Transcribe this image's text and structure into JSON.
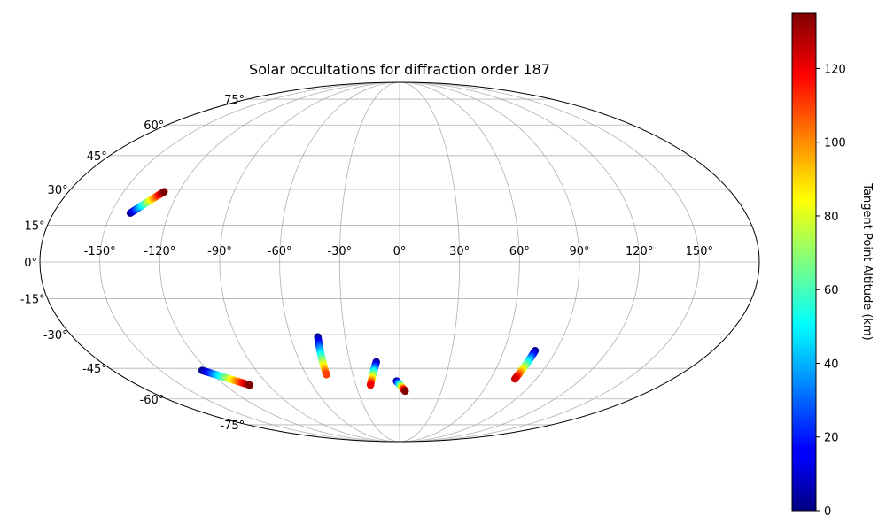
{
  "chart_data": {
    "type": "scatter",
    "projection": "mollweide",
    "title": "Solar occultations for diffraction order 187",
    "grid": true,
    "lon_tick_labels": [
      "-150°",
      "-120°",
      "-90°",
      "-60°",
      "-30°",
      "0°",
      "30°",
      "60°",
      "90°",
      "120°",
      "150°"
    ],
    "lon_ticks": [
      -150,
      -120,
      -90,
      -60,
      -30,
      0,
      30,
      60,
      90,
      120,
      150
    ],
    "lat_tick_labels": [
      "75°",
      "60°",
      "45°",
      "30°",
      "15°",
      "0°",
      "-15°",
      "-30°",
      "-45°",
      "-60°",
      "-75°"
    ],
    "lat_ticks": [
      75,
      60,
      45,
      30,
      15,
      0,
      -15,
      -30,
      -45,
      -60,
      -75
    ],
    "colorbar": {
      "label": "Tangent Point Altitude (km)",
      "colormap": "jet",
      "range": [
        0,
        135
      ],
      "ticks": [
        0,
        20,
        40,
        60,
        80,
        100,
        120
      ],
      "tick_labels": [
        "0",
        "20",
        "40",
        "60",
        "80",
        "100",
        "120"
      ]
    },
    "tracks": [
      {
        "start": {
          "lon": -140,
          "lat": 20,
          "alt": 0
        },
        "end": {
          "lon": -128,
          "lat": 29,
          "alt": 135
        }
      },
      {
        "start": {
          "lon": -124,
          "lat": -46,
          "alt": 0
        },
        "end": {
          "lon": -103,
          "lat": -53,
          "alt": 135
        }
      },
      {
        "start": {
          "lon": -45,
          "lat": -31,
          "alt": 0
        },
        "end": {
          "lon": -47,
          "lat": -48,
          "alt": 110
        }
      },
      {
        "start": {
          "lon": -14,
          "lat": -42,
          "alt": 0
        },
        "end": {
          "lon": -20,
          "lat": -53,
          "alt": 120
        }
      },
      {
        "start": {
          "lon": -2,
          "lat": -51,
          "alt": 0
        },
        "end": {
          "lon": 4,
          "lat": -56,
          "alt": 135
        }
      },
      {
        "start": {
          "lon": 78,
          "lat": -37,
          "alt": 0
        },
        "end": {
          "lon": 76,
          "lat": -50,
          "alt": 125
        }
      }
    ]
  }
}
